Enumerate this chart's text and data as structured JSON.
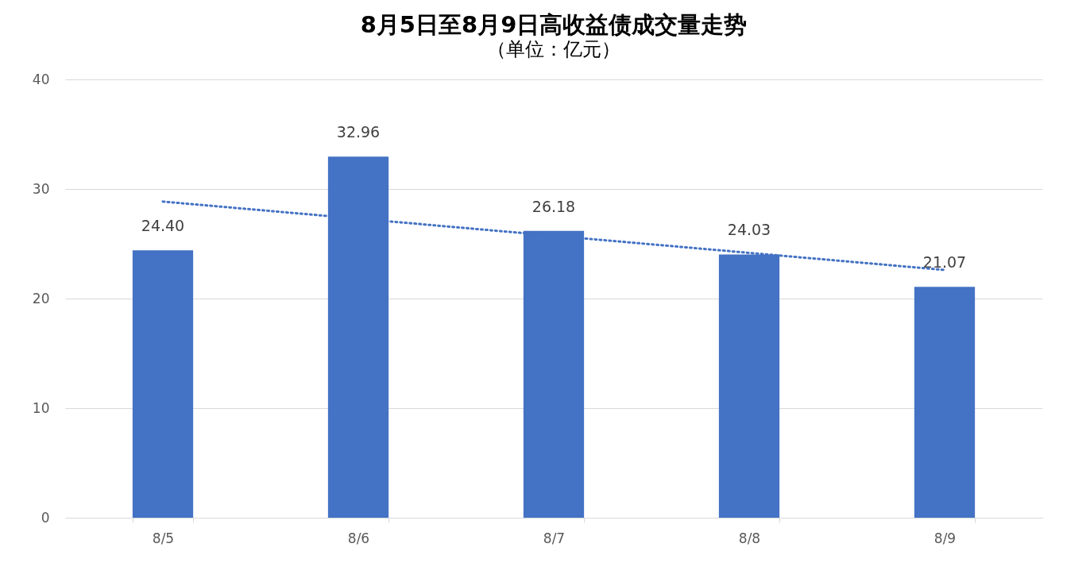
{
  "chart_data": {
    "type": "bar",
    "title": "8月5日至8月9日高收益债成交量走势",
    "subtitle": "（单位：亿元）",
    "categories": [
      "8/5",
      "8/6",
      "8/7",
      "8/8",
      "8/9"
    ],
    "series": [
      {
        "color": "#4472c4",
        "values": [
          24.4,
          32.96,
          26.18,
          24.03,
          21.07
        ],
        "value_labels": [
          "24.40",
          "32.96",
          "26.18",
          "24.03",
          "21.07"
        ]
      },
      {
        "type": "line",
        "color": "#4472c4",
        "x": [
          "8/5",
          "8/9"
        ],
        "values": [
          28.85,
          22.61
        ],
        "line_style": "dotted",
        "marker": "none"
      }
    ],
    "ylim": [
      0,
      40
    ],
    "yticks": [
      0,
      10,
      20,
      30,
      40
    ],
    "grid": "y"
  }
}
